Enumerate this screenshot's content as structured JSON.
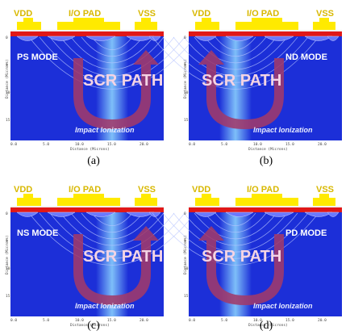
{
  "labels": {
    "vdd": "VDD",
    "io_pad": "I/O PAD",
    "vss": "VSS",
    "scr_path": "SCR PATH",
    "impact_ionization": "Impact Ionization",
    "y_axis": "Distance (Microns)",
    "x_axis": "Distance (Microns)"
  },
  "x_ticks": [
    "0.0",
    "5.0",
    "10.0",
    "15.0",
    "20.0"
  ],
  "y_ticks": [
    "0",
    "5",
    "10",
    "15"
  ],
  "panels": [
    {
      "id": "a",
      "caption": "(a)",
      "mode": "PS MODE",
      "mode_side": "left",
      "arrow": "right-up"
    },
    {
      "id": "b",
      "caption": "(b)",
      "mode": "ND MODE",
      "mode_side": "right",
      "arrow": "left-up"
    },
    {
      "id": "c",
      "caption": "(c)",
      "mode": "NS MODE",
      "mode_side": "left",
      "arrow": "right-up"
    },
    {
      "id": "d",
      "caption": "(d)",
      "mode": "PD MODE",
      "mode_side": "right",
      "arrow": "left-up"
    }
  ],
  "colors": {
    "substrate": "#1c2fd8",
    "top_red": "#e01818",
    "pad_yellow": "#ffea00",
    "arrow": "#a03a6a",
    "label_text": "#ffffff",
    "current": "#8fd8ff"
  }
}
